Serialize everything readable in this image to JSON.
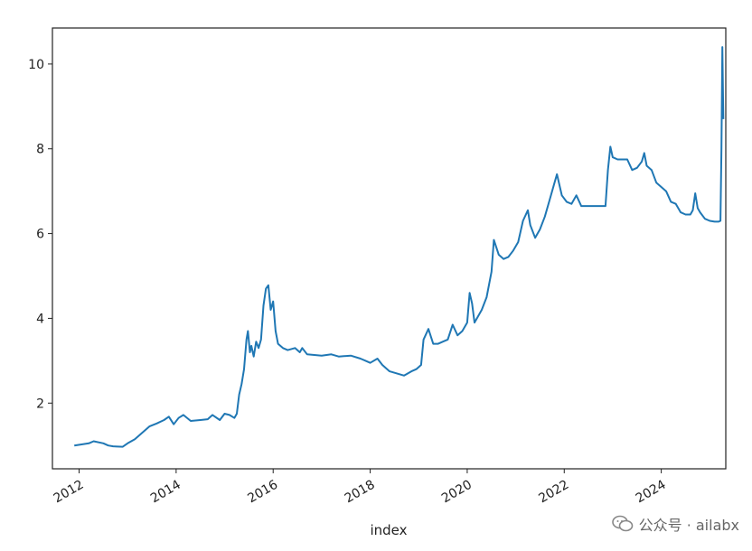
{
  "chart_data": {
    "type": "line",
    "title": "",
    "xlabel": "index",
    "ylabel": "",
    "grid": false,
    "legend": "none",
    "xlim": [
      2011.45,
      2025.33
    ],
    "ylim": [
      0.45,
      10.85
    ],
    "x_ticks": [
      2012,
      2014,
      2016,
      2018,
      2020,
      2022,
      2024
    ],
    "x_tick_labels": [
      "2012",
      "2014",
      "2016",
      "2018",
      "2020",
      "2022",
      "2024"
    ],
    "y_ticks": [
      2,
      4,
      6,
      8,
      10
    ],
    "y_tick_labels": [
      "2",
      "4",
      "6",
      "8",
      "10"
    ],
    "series": [
      {
        "color": "#1f77b4",
        "points": [
          [
            2011.9,
            1.0
          ],
          [
            2012.2,
            1.05
          ],
          [
            2012.3,
            1.1
          ],
          [
            2012.5,
            1.05
          ],
          [
            2012.6,
            1.0
          ],
          [
            2012.7,
            0.98
          ],
          [
            2012.9,
            0.97
          ],
          [
            2013.0,
            1.05
          ],
          [
            2013.15,
            1.15
          ],
          [
            2013.3,
            1.3
          ],
          [
            2013.45,
            1.45
          ],
          [
            2013.6,
            1.52
          ],
          [
            2013.75,
            1.6
          ],
          [
            2013.85,
            1.68
          ],
          [
            2013.95,
            1.5
          ],
          [
            2014.05,
            1.65
          ],
          [
            2014.15,
            1.72
          ],
          [
            2014.3,
            1.58
          ],
          [
            2014.5,
            1.6
          ],
          [
            2014.65,
            1.62
          ],
          [
            2014.75,
            1.72
          ],
          [
            2014.9,
            1.6
          ],
          [
            2015.0,
            1.75
          ],
          [
            2015.1,
            1.72
          ],
          [
            2015.2,
            1.65
          ],
          [
            2015.25,
            1.75
          ],
          [
            2015.3,
            2.2
          ],
          [
            2015.35,
            2.45
          ],
          [
            2015.4,
            2.8
          ],
          [
            2015.45,
            3.5
          ],
          [
            2015.48,
            3.7
          ],
          [
            2015.52,
            3.2
          ],
          [
            2015.55,
            3.35
          ],
          [
            2015.6,
            3.1
          ],
          [
            2015.65,
            3.45
          ],
          [
            2015.7,
            3.3
          ],
          [
            2015.75,
            3.5
          ],
          [
            2015.8,
            4.3
          ],
          [
            2015.85,
            4.7
          ],
          [
            2015.9,
            4.78
          ],
          [
            2015.95,
            4.2
          ],
          [
            2016.0,
            4.4
          ],
          [
            2016.05,
            3.7
          ],
          [
            2016.1,
            3.4
          ],
          [
            2016.2,
            3.3
          ],
          [
            2016.3,
            3.25
          ],
          [
            2016.45,
            3.3
          ],
          [
            2016.55,
            3.2
          ],
          [
            2016.6,
            3.3
          ],
          [
            2016.7,
            3.15
          ],
          [
            2017.0,
            3.12
          ],
          [
            2017.2,
            3.15
          ],
          [
            2017.35,
            3.1
          ],
          [
            2017.6,
            3.12
          ],
          [
            2017.8,
            3.05
          ],
          [
            2017.9,
            3.0
          ],
          [
            2018.0,
            2.95
          ],
          [
            2018.15,
            3.05
          ],
          [
            2018.25,
            2.9
          ],
          [
            2018.4,
            2.75
          ],
          [
            2018.55,
            2.7
          ],
          [
            2018.7,
            2.65
          ],
          [
            2018.85,
            2.75
          ],
          [
            2018.95,
            2.8
          ],
          [
            2019.05,
            2.9
          ],
          [
            2019.1,
            3.5
          ],
          [
            2019.2,
            3.75
          ],
          [
            2019.3,
            3.4
          ],
          [
            2019.4,
            3.4
          ],
          [
            2019.5,
            3.45
          ],
          [
            2019.6,
            3.5
          ],
          [
            2019.7,
            3.85
          ],
          [
            2019.8,
            3.6
          ],
          [
            2019.9,
            3.7
          ],
          [
            2020.0,
            3.9
          ],
          [
            2020.05,
            4.6
          ],
          [
            2020.1,
            4.35
          ],
          [
            2020.15,
            3.9
          ],
          [
            2020.3,
            4.2
          ],
          [
            2020.4,
            4.5
          ],
          [
            2020.5,
            5.1
          ],
          [
            2020.55,
            5.85
          ],
          [
            2020.65,
            5.5
          ],
          [
            2020.75,
            5.4
          ],
          [
            2020.85,
            5.45
          ],
          [
            2020.95,
            5.6
          ],
          [
            2021.05,
            5.8
          ],
          [
            2021.15,
            6.3
          ],
          [
            2021.25,
            6.55
          ],
          [
            2021.3,
            6.2
          ],
          [
            2021.4,
            5.9
          ],
          [
            2021.5,
            6.1
          ],
          [
            2021.6,
            6.4
          ],
          [
            2021.7,
            6.8
          ],
          [
            2021.8,
            7.2
          ],
          [
            2021.85,
            7.4
          ],
          [
            2021.95,
            6.9
          ],
          [
            2022.05,
            6.75
          ],
          [
            2022.15,
            6.7
          ],
          [
            2022.25,
            6.9
          ],
          [
            2022.35,
            6.65
          ],
          [
            2022.55,
            6.65
          ],
          [
            2022.75,
            6.65
          ],
          [
            2022.85,
            6.65
          ],
          [
            2022.9,
            7.5
          ],
          [
            2022.95,
            8.05
          ],
          [
            2023.0,
            7.8
          ],
          [
            2023.1,
            7.75
          ],
          [
            2023.3,
            7.75
          ],
          [
            2023.4,
            7.5
          ],
          [
            2023.5,
            7.55
          ],
          [
            2023.6,
            7.7
          ],
          [
            2023.65,
            7.9
          ],
          [
            2023.7,
            7.6
          ],
          [
            2023.8,
            7.5
          ],
          [
            2023.9,
            7.2
          ],
          [
            2024.0,
            7.1
          ],
          [
            2024.1,
            7.0
          ],
          [
            2024.2,
            6.75
          ],
          [
            2024.3,
            6.7
          ],
          [
            2024.4,
            6.5
          ],
          [
            2024.5,
            6.45
          ],
          [
            2024.6,
            6.45
          ],
          [
            2024.65,
            6.55
          ],
          [
            2024.7,
            6.95
          ],
          [
            2024.75,
            6.6
          ],
          [
            2024.8,
            6.5
          ],
          [
            2024.9,
            6.35
          ],
          [
            2025.0,
            6.3
          ],
          [
            2025.1,
            6.28
          ],
          [
            2025.18,
            6.28
          ],
          [
            2025.22,
            6.3
          ],
          [
            2025.24,
            8.0
          ],
          [
            2025.26,
            10.4
          ],
          [
            2025.28,
            8.7
          ]
        ]
      }
    ]
  },
  "watermark": {
    "text": "公众号 · ailabx",
    "icon": "wechat-icon"
  }
}
